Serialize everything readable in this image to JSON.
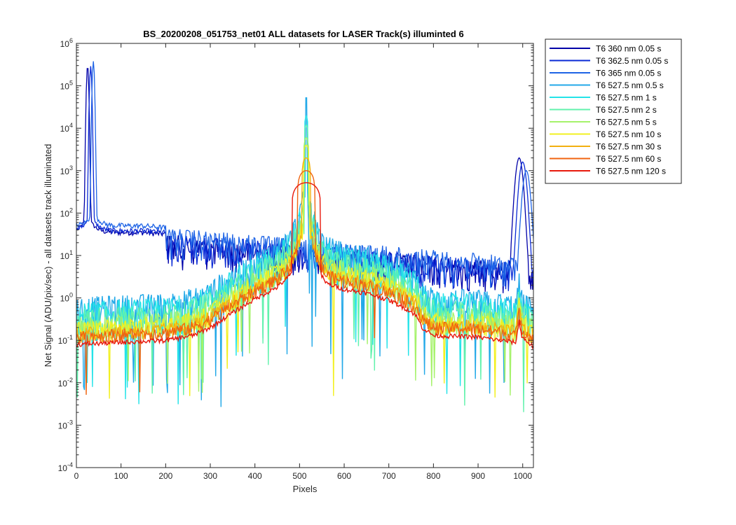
{
  "chart_data": {
    "type": "line",
    "title": "BS_20200208_051753_net01 ALL datasets for LASER  Track(s) illuminted 6",
    "xlabel": "Pixels",
    "ylabel": "Net Signal (ADU/pix/sec) - all datasets track illuminated",
    "yscale": "log",
    "xlim": [
      0,
      1024
    ],
    "ylim_exponent": [
      -4,
      6
    ],
    "x_ticks": [
      0,
      100,
      200,
      300,
      400,
      500,
      600,
      700,
      800,
      900,
      1000
    ],
    "y_tick_base": "10",
    "y_tick_exponents": [
      "-4",
      "-3",
      "-2",
      "-1",
      "0",
      "1",
      "2",
      "3",
      "4",
      "5",
      "6"
    ],
    "grid": false,
    "legend_position": "outside-right",
    "series": [
      {
        "name": "T6 360 nm 0.05 s",
        "color": "#0000a8",
        "kind": "uv",
        "peak_x": 25,
        "peak_value": 300000,
        "level_value": 35,
        "right_peak_x": 992,
        "right_peak_value": 2000
      },
      {
        "name": "T6 362.5 nm 0.05 s",
        "color": "#0a2ad6",
        "kind": "uv",
        "peak_x": 32,
        "peak_value": 290000,
        "level_value": 38,
        "right_peak_x": 1000,
        "right_peak_value": 1600
      },
      {
        "name": "T6 365 nm 0.05 s",
        "color": "#1e64e6",
        "kind": "uv",
        "peak_x": 38,
        "peak_value": 380000,
        "level_value": 50,
        "right_peak_x": 1008,
        "right_peak_value": 1000
      },
      {
        "name": "T6 527.5 nm 0.5 s",
        "color": "#23a9e8",
        "kind": "vis",
        "peak_value": 55000,
        "peak_halfwidth": 3,
        "noise_value": 1.2
      },
      {
        "name": "T6 527.5 nm 1 s",
        "color": "#24e3e8",
        "kind": "vis",
        "peak_value": 20000,
        "peak_halfwidth": 4,
        "noise_value": 0.9
      },
      {
        "name": "T6 527.5 nm 2 s",
        "color": "#63f2ad",
        "kind": "vis",
        "peak_value": 12000,
        "peak_halfwidth": 5,
        "noise_value": 0.6
      },
      {
        "name": "T6 527.5 nm 5 s",
        "color": "#a5f26a",
        "kind": "vis",
        "peak_value": 6000,
        "peak_halfwidth": 6,
        "noise_value": 0.35
      },
      {
        "name": "T6 527.5 nm 10 s",
        "color": "#f2f020",
        "kind": "vis",
        "peak_value": 4000,
        "peak_halfwidth": 7,
        "noise_value": 0.25
      },
      {
        "name": "T6 527.5 nm 30 s",
        "color": "#f2b010",
        "kind": "vis",
        "peak_value": 2000,
        "peak_halfwidth": 10,
        "noise_value": 0.15
      },
      {
        "name": "T6 527.5 nm 60 s",
        "color": "#f06410",
        "kind": "vis",
        "peak_value": 1000,
        "peak_halfwidth": 20,
        "noise_value": 0.11
      },
      {
        "name": "T6 527.5 nm 120 s",
        "color": "#e8180c",
        "kind": "vis",
        "peak_value": 520,
        "peak_halfwidth": 33,
        "noise_value": 0.085
      }
    ]
  }
}
